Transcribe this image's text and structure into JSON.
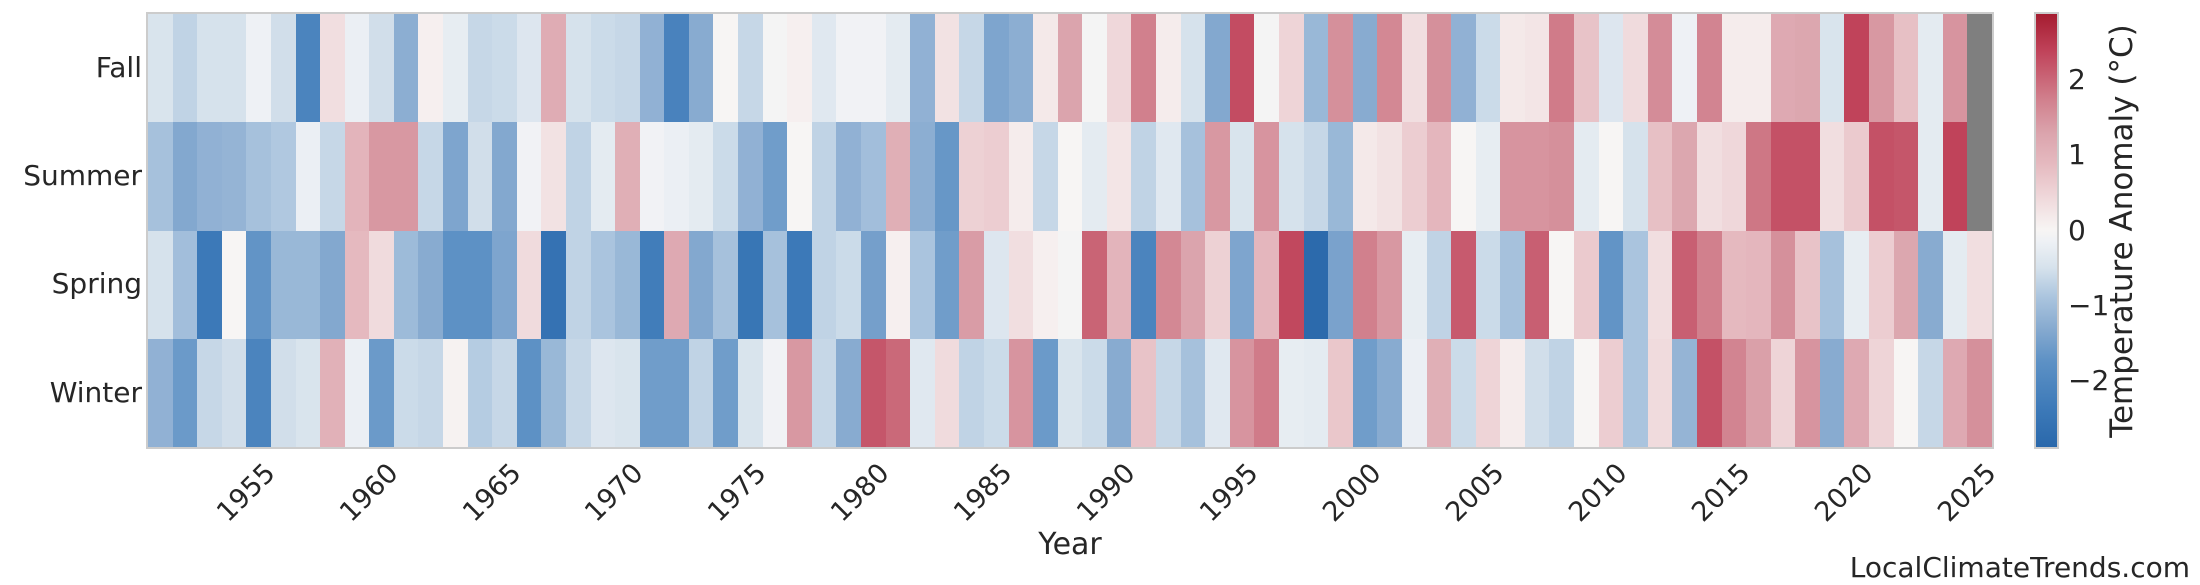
{
  "x_axis": {
    "label": "Year",
    "tick_years": [
      1955,
      1960,
      1965,
      1970,
      1975,
      1980,
      1985,
      1990,
      1995,
      2000,
      2005,
      2010,
      2015,
      2020,
      2025
    ]
  },
  "colorbar": {
    "label": "Temperature Anomaly (°C)",
    "ticks": [
      {
        "value": 2,
        "label": "2"
      },
      {
        "value": 1,
        "label": "1"
      },
      {
        "value": 0,
        "label": "0"
      },
      {
        "value": -1,
        "label": "−1"
      },
      {
        "value": -2,
        "label": "−2"
      }
    ],
    "vmin": -2.9,
    "vmax": 2.9
  },
  "watermark": "LocalClimateTrends.com",
  "chart_data": {
    "type": "heatmap",
    "title": "",
    "xlabel": "Year",
    "ylabel": "",
    "legend_label": "Temperature Anomaly (°C)",
    "rows": [
      "Fall",
      "Summer",
      "Spring",
      "Winter"
    ],
    "year_start": 1951,
    "year_end": 2025,
    "missing_color": "#7f7f7f",
    "colormap_stops": [
      {
        "v": -2.9,
        "color": "#2a68ab"
      },
      {
        "v": -2.4,
        "color": "#3c79b8"
      },
      {
        "v": -1.75,
        "color": "#5d91c5"
      },
      {
        "v": -1.3,
        "color": "#88abd0"
      },
      {
        "v": -0.9,
        "color": "#aac4de"
      },
      {
        "v": -0.5,
        "color": "#d6e2ec"
      },
      {
        "v": -0.15,
        "color": "#eef1f5"
      },
      {
        "v": 0,
        "color": "#f7f5f4"
      },
      {
        "v": 0.15,
        "color": "#f5ecec"
      },
      {
        "v": 0.5,
        "color": "#eed4d7"
      },
      {
        "v": 0.9,
        "color": "#e5b9bf"
      },
      {
        "v": 1.3,
        "color": "#dba4ad"
      },
      {
        "v": 1.75,
        "color": "#d1808d"
      },
      {
        "v": 2.4,
        "color": "#c0435a"
      },
      {
        "v": 2.9,
        "color": "#a51c30"
      }
    ],
    "series": [
      {
        "name": "Fall",
        "values": [
          -0.45,
          -0.7,
          -0.5,
          -0.5,
          -0.15,
          -0.55,
          -2.1,
          0.35,
          -0.2,
          -0.55,
          -1.25,
          0.1,
          -0.25,
          -0.65,
          -0.6,
          -0.4,
          1.15,
          -0.5,
          -0.6,
          -0.65,
          -1.2,
          -2.15,
          -1.3,
          0,
          -0.65,
          -0.05,
          0.1,
          -0.35,
          -0.1,
          -0.1,
          -0.3,
          -1.2,
          0.3,
          -0.65,
          -1.4,
          -1.25,
          0.2,
          1.3,
          -0.05,
          0.45,
          1.75,
          0.15,
          -0.5,
          -1.35,
          2.3,
          -0.05,
          0.5,
          -1.1,
          1.55,
          -1.3,
          1.65,
          0.35,
          1.55,
          -1.2,
          -0.6,
          0.2,
          0.25,
          1.8,
          0.75,
          -0.4,
          0.4,
          1.6,
          -0.15,
          1.7,
          0.15,
          0.15,
          1.2,
          1.25,
          -0.45,
          2.4,
          1.45,
          0.8,
          -0.3,
          1.5,
          null
        ]
      },
      {
        "name": "Summer",
        "values": [
          -0.95,
          -1.35,
          -1.2,
          -1.15,
          -0.95,
          -0.85,
          -0.2,
          -0.65,
          1.0,
          1.45,
          1.45,
          -0.65,
          -1.4,
          -0.55,
          -1.35,
          -0.1,
          0.3,
          -0.7,
          -0.3,
          1.1,
          -0.1,
          -0.2,
          -0.3,
          -0.6,
          -1.2,
          -1.55,
          0,
          -0.7,
          -1.2,
          -1.0,
          1.1,
          -1.25,
          -1.65,
          0.55,
          0.6,
          0.15,
          -0.65,
          0,
          -0.3,
          0.25,
          -0.7,
          -0.35,
          -0.95,
          1.45,
          -0.45,
          1.5,
          -0.5,
          -0.65,
          -1.1,
          0.2,
          0.3,
          0.6,
          0.95,
          0,
          -0.25,
          1.5,
          1.5,
          1.55,
          -0.3,
          0,
          -0.5,
          0.8,
          1.25,
          0.35,
          0.45,
          1.85,
          2.25,
          2.25,
          0.35,
          0.65,
          2.25,
          2.2,
          -0.3,
          2.4,
          null
        ]
      },
      {
        "name": "Spring",
        "values": [
          -0.5,
          -1.0,
          -2.4,
          0,
          -1.7,
          -1.1,
          -1.1,
          -1.35,
          0.9,
          0.4,
          -1.05,
          -1.3,
          -1.75,
          -1.75,
          -1.4,
          0.4,
          -2.6,
          -0.7,
          -0.9,
          -1.1,
          -2.3,
          1.2,
          -1.35,
          -0.95,
          -2.5,
          -0.95,
          -2.4,
          -0.7,
          -0.6,
          -1.5,
          0.1,
          -0.9,
          -1.55,
          1.4,
          -0.4,
          0.35,
          0.1,
          -0.05,
          2.05,
          1.0,
          -2.1,
          1.65,
          1.3,
          0.55,
          -1.4,
          0.95,
          2.35,
          -2.85,
          -1.45,
          1.75,
          1.45,
          -0.25,
          -0.7,
          2.15,
          -0.6,
          -0.95,
          2.1,
          0,
          0.65,
          -1.7,
          -0.9,
          0.35,
          2.1,
          1.75,
          0.9,
          0.95,
          1.55,
          0.75,
          -0.95,
          -0.25,
          0.6,
          1.25,
          -1.3,
          -0.3,
          0.35
        ]
      },
      {
        "name": "Winter",
        "values": [
          -1.2,
          -1.6,
          -0.65,
          -0.55,
          -2.1,
          -0.55,
          -0.45,
          1.05,
          -0.2,
          -1.6,
          -0.6,
          -0.65,
          0.05,
          -0.8,
          -0.65,
          -1.75,
          -1.1,
          -0.65,
          -0.4,
          -0.45,
          -1.55,
          -1.55,
          -0.7,
          -1.55,
          -0.45,
          -0.1,
          1.45,
          -0.65,
          -1.3,
          2.2,
          2.0,
          -0.35,
          0.4,
          -0.7,
          -0.6,
          1.5,
          -1.6,
          -0.45,
          -0.6,
          -1.3,
          0.75,
          -0.65,
          -0.95,
          -0.35,
          1.5,
          1.8,
          -0.25,
          -0.3,
          0.7,
          -1.55,
          -1.3,
          -0.2,
          1.1,
          -0.6,
          0.5,
          0.15,
          -0.55,
          -0.7,
          0,
          0.6,
          -0.9,
          0.4,
          -1.15,
          2.25,
          1.7,
          1.35,
          0.5,
          1.5,
          -1.3,
          1.2,
          0.5,
          0,
          -0.65,
          1.2,
          1.55
        ]
      }
    ]
  }
}
